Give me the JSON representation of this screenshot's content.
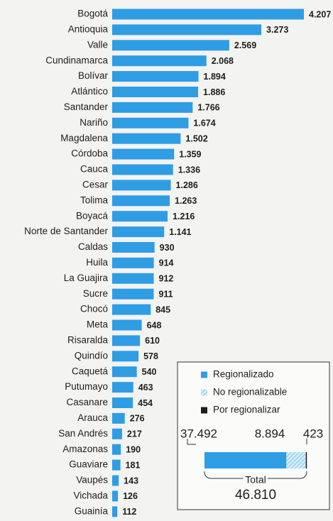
{
  "chart_data": [
    {
      "type": "hbar",
      "color": "#2f9de3",
      "categories": [
        "Bogotá",
        "Antioquia",
        "Valle",
        "Cundinamarca",
        "Bolívar",
        "Atlántico",
        "Santander",
        "Nariño",
        "Magdalena",
        "Córdoba",
        "Cauca",
        "Cesar",
        "Tolima",
        "Boyacá",
        "Norte de Santander",
        "Caldas",
        "Huila",
        "La Guajira",
        "Sucre",
        "Chocó",
        "Meta",
        "Risaralda",
        "Quindío",
        "Caquetá",
        "Putumayo",
        "Casanare",
        "Arauca",
        "San Andrés",
        "Amazonas",
        "Guaviare",
        "Vaupés",
        "Vichada",
        "Guainía"
      ],
      "values": [
        4207,
        3273,
        2569,
        2068,
        1894,
        1886,
        1766,
        1674,
        1502,
        1359,
        1336,
        1286,
        1263,
        1216,
        1141,
        930,
        914,
        912,
        911,
        845,
        648,
        610,
        578,
        540,
        463,
        454,
        276,
        217,
        190,
        181,
        143,
        126,
        112
      ],
      "value_labels": [
        "4.207",
        "3.273",
        "2.569",
        "2.068",
        "1.894",
        "1.886",
        "1.766",
        "1.674",
        "1.502",
        "1.359",
        "1.336",
        "1.286",
        "1.263",
        "1.216",
        "1.141",
        "930",
        "914",
        "912",
        "911",
        "845",
        "648",
        "610",
        "578",
        "540",
        "463",
        "454",
        "276",
        "217",
        "190",
        "181",
        "143",
        "126",
        "112"
      ]
    },
    {
      "type": "stacked-total",
      "series": [
        {
          "name": "Regionalizado",
          "color": "#2f9de3",
          "values": [
            37492
          ],
          "value_labels": [
            "37.492"
          ]
        },
        {
          "name": "No regionalizable",
          "color": "#a9daf3",
          "values": [
            8894
          ],
          "value_labels": [
            "8.894"
          ]
        },
        {
          "name": "Por regionalizar",
          "color": "#1c1c1c",
          "values": [
            423
          ],
          "value_labels": [
            "423"
          ]
        }
      ],
      "total_title": "Total",
      "total": 46810,
      "total_label": "46.810"
    }
  ]
}
